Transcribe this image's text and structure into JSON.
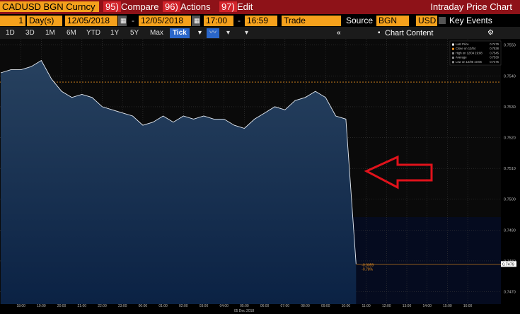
{
  "header": {
    "security": "CADUSD BGN Curncy",
    "menus": [
      {
        "num": "95)",
        "label": "Compare"
      },
      {
        "num": "96)",
        "label": "Actions"
      },
      {
        "num": "97)",
        "label": "Edit"
      }
    ],
    "title": "Intraday Price Chart"
  },
  "toolbar": {
    "period": "1",
    "period_unit": "Day(s)",
    "start_date": "12/05/2018",
    "end_date": "12/05/2018",
    "start_time": "17:00",
    "end_time": "16:59",
    "field": "Trade",
    "source_label": "Source",
    "source": "BGN",
    "currency": "USD",
    "key_events": "Key Events"
  },
  "ranges": [
    "1D",
    "3D",
    "1M",
    "6M",
    "YTD",
    "1Y",
    "5Y",
    "Max"
  ],
  "interval": "Tick",
  "panel": "Chart Content",
  "chart": {
    "type": "area",
    "color": "#e6ecf4",
    "values": [
      0.7541,
      0.7542,
      0.7542,
      0.7543,
      0.7545,
      0.7539,
      0.7535,
      0.7533,
      0.7534,
      0.7533,
      0.753,
      0.7529,
      0.7528,
      0.7527,
      0.7524,
      0.7525,
      0.7527,
      0.7525,
      0.7527,
      0.7526,
      0.7527,
      0.7526,
      0.7526,
      0.7524,
      0.7523,
      0.7526,
      0.7528,
      0.753,
      0.7529,
      0.7532,
      0.7533,
      0.7535,
      0.7533,
      0.7527,
      0.7526,
      0.7479
    ],
    "ylim": [
      0.7466,
      0.7552
    ],
    "yticks": [
      {
        "value": 0.747,
        "label": "0.7470"
      },
      {
        "value": 0.748,
        "label": "0.7480"
      },
      {
        "value": 0.749,
        "label": "0.7490"
      },
      {
        "value": 0.75,
        "label": "0.7500"
      },
      {
        "value": 0.751,
        "label": "0.7510"
      },
      {
        "value": 0.752,
        "label": "0.7520"
      },
      {
        "value": 0.753,
        "label": "0.7530"
      },
      {
        "value": 0.754,
        "label": "0.7540"
      },
      {
        "value": 0.755,
        "label": "0.7550"
      }
    ],
    "xticks": [
      "18:00",
      "19:00",
      "20:00",
      "21:00",
      "22:00",
      "23:00",
      "00:00",
      "01:00",
      "02:00",
      "03:00",
      "04:00",
      "05:00",
      "06:00",
      "07:00",
      "08:00",
      "09:00",
      "10:00",
      "11:00",
      "12:00",
      "13:00",
      "14:00",
      "15:00",
      "16:00"
    ],
    "x_date": "05 Dec 2018",
    "close_line": 0.7538,
    "last_label": "0.7479",
    "change": "-0.0059",
    "change_pct": "-0.78%",
    "legend": [
      {
        "name": "Last Price",
        "value": "0.7479"
      },
      {
        "name": "Close on 12/04",
        "value": "0.7538"
      },
      {
        "name": "High on 12/04 19:08",
        "value": "0.7545"
      },
      {
        "name": "Average",
        "value": "0.7530"
      },
      {
        "name": "Low on 12/05 10:06",
        "value": "0.7475"
      }
    ]
  }
}
